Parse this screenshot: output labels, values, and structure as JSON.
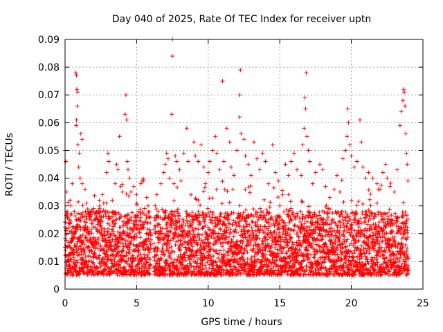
{
  "chart_data": {
    "type": "scatter",
    "title": "Day 040 of 2025, Rate Of TEC Index for receiver uptn",
    "xlabel": "GPS time / hours",
    "ylabel": "ROTI / TECUs",
    "xlim": [
      0,
      25
    ],
    "ylim": [
      0,
      0.09
    ],
    "xticks": [
      0,
      5,
      10,
      15,
      20,
      25
    ],
    "xtick_labels": [
      "0",
      "5",
      "10",
      "15",
      "20",
      "25"
    ],
    "yticks": [
      0,
      0.01,
      0.02,
      0.03,
      0.04,
      0.05,
      0.06,
      0.07,
      0.08,
      0.09
    ],
    "ytick_labels": [
      "0",
      "0.01",
      "0.02",
      "0.03",
      "0.04",
      "0.05",
      "0.06",
      "0.07",
      "0.08",
      "0.09"
    ],
    "grid": true,
    "marker": "+",
    "color": "#ff0000",
    "data_gap_hours": [
      6.0,
      6.2
    ],
    "series": [
      {
        "name": "ROTI",
        "points": [
          [
            0.0,
            0.05
          ],
          [
            0.05,
            0.046
          ],
          [
            0.1,
            0.035
          ],
          [
            0.15,
            0.028
          ],
          [
            0.3,
            0.025
          ],
          [
            0.4,
            0.03
          ],
          [
            0.5,
            0.038
          ],
          [
            0.75,
            0.078
          ],
          [
            0.8,
            0.077
          ],
          [
            0.82,
            0.072
          ],
          [
            0.88,
            0.071
          ],
          [
            0.85,
            0.066
          ],
          [
            0.8,
            0.061
          ],
          [
            0.78,
            0.059
          ],
          [
            0.9,
            0.052
          ],
          [
            1.0,
            0.049
          ],
          [
            1.1,
            0.056
          ],
          [
            1.2,
            0.054
          ],
          [
            0.95,
            0.044
          ],
          [
            1.05,
            0.04
          ],
          [
            1.2,
            0.038
          ],
          [
            1.4,
            0.036
          ],
          [
            1.5,
            0.031
          ],
          [
            1.6,
            0.028
          ],
          [
            1.8,
            0.027
          ],
          [
            2.0,
            0.029
          ],
          [
            2.2,
            0.026
          ],
          [
            2.4,
            0.032
          ],
          [
            2.5,
            0.028
          ],
          [
            2.7,
            0.031
          ],
          [
            2.9,
            0.042
          ],
          [
            3.0,
            0.049
          ],
          [
            3.05,
            0.046
          ],
          [
            3.3,
            0.032
          ],
          [
            3.5,
            0.038
          ],
          [
            3.6,
            0.045
          ],
          [
            3.7,
            0.043
          ],
          [
            3.8,
            0.055
          ],
          [
            3.9,
            0.037
          ],
          [
            4.0,
            0.035
          ],
          [
            4.2,
            0.063
          ],
          [
            4.25,
            0.07
          ],
          [
            4.3,
            0.061
          ],
          [
            4.35,
            0.046
          ],
          [
            4.4,
            0.043
          ],
          [
            4.5,
            0.04
          ],
          [
            4.6,
            0.035
          ],
          [
            4.8,
            0.037
          ],
          [
            5.0,
            0.031
          ],
          [
            5.1,
            0.028
          ],
          [
            5.3,
            0.038
          ],
          [
            5.5,
            0.039
          ],
          [
            5.7,
            0.033
          ],
          [
            5.8,
            0.03
          ],
          [
            5.95,
            0.026
          ],
          [
            6.3,
            0.03
          ],
          [
            6.5,
            0.028
          ],
          [
            6.7,
            0.038
          ],
          [
            6.9,
            0.042
          ],
          [
            7.0,
            0.045
          ],
          [
            7.1,
            0.049
          ],
          [
            7.2,
            0.047
          ],
          [
            7.3,
            0.04
          ],
          [
            7.5,
            0.09
          ],
          [
            7.5,
            0.084
          ],
          [
            7.45,
            0.063
          ],
          [
            7.6,
            0.038
          ],
          [
            7.7,
            0.048
          ],
          [
            7.8,
            0.046
          ],
          [
            8.0,
            0.043
          ],
          [
            8.1,
            0.039
          ],
          [
            8.3,
            0.049
          ],
          [
            8.5,
            0.058
          ],
          [
            8.6,
            0.046
          ],
          [
            8.8,
            0.034
          ],
          [
            9.0,
            0.053
          ],
          [
            9.1,
            0.048
          ],
          [
            9.3,
            0.046
          ],
          [
            9.5,
            0.052
          ],
          [
            9.7,
            0.044
          ],
          [
            9.8,
            0.038
          ],
          [
            10.0,
            0.042
          ],
          [
            10.1,
            0.046
          ],
          [
            10.3,
            0.05
          ],
          [
            10.5,
            0.055
          ],
          [
            10.6,
            0.049
          ],
          [
            10.8,
            0.043
          ],
          [
            11.0,
            0.075
          ],
          [
            11.1,
            0.046
          ],
          [
            11.3,
            0.058
          ],
          [
            11.5,
            0.053
          ],
          [
            11.6,
            0.044
          ],
          [
            11.8,
            0.041
          ],
          [
            12.0,
            0.05
          ],
          [
            12.2,
            0.062
          ],
          [
            12.25,
            0.079
          ],
          [
            12.2,
            0.07
          ],
          [
            12.3,
            0.056
          ],
          [
            12.5,
            0.054
          ],
          [
            12.6,
            0.048
          ],
          [
            12.8,
            0.045
          ],
          [
            13.0,
            0.041
          ],
          [
            13.2,
            0.053
          ],
          [
            13.4,
            0.047
          ],
          [
            13.6,
            0.043
          ],
          [
            13.8,
            0.049
          ],
          [
            14.0,
            0.046
          ],
          [
            14.2,
            0.038
          ],
          [
            14.5,
            0.052
          ],
          [
            14.7,
            0.042
          ],
          [
            14.9,
            0.039
          ],
          [
            15.0,
            0.03
          ],
          [
            15.2,
            0.034
          ],
          [
            15.4,
            0.045
          ],
          [
            15.6,
            0.041
          ],
          [
            15.8,
            0.046
          ],
          [
            16.0,
            0.049
          ],
          [
            16.2,
            0.043
          ],
          [
            16.5,
            0.041
          ],
          [
            16.6,
            0.052
          ],
          [
            16.7,
            0.058
          ],
          [
            16.8,
            0.065
          ],
          [
            16.85,
            0.078
          ],
          [
            16.75,
            0.069
          ],
          [
            16.9,
            0.055
          ],
          [
            17.0,
            0.05
          ],
          [
            17.1,
            0.046
          ],
          [
            17.3,
            0.038
          ],
          [
            17.5,
            0.042
          ],
          [
            17.8,
            0.045
          ],
          [
            18.0,
            0.043
          ],
          [
            18.2,
            0.037
          ],
          [
            18.5,
            0.033
          ],
          [
            18.8,
            0.036
          ],
          [
            19.0,
            0.041
          ],
          [
            19.2,
            0.035
          ],
          [
            19.4,
            0.047
          ],
          [
            19.6,
            0.05
          ],
          [
            19.7,
            0.055
          ],
          [
            19.75,
            0.065
          ],
          [
            19.8,
            0.06
          ],
          [
            19.9,
            0.052
          ],
          [
            20.0,
            0.048
          ],
          [
            20.2,
            0.044
          ],
          [
            20.4,
            0.046
          ],
          [
            20.6,
            0.061
          ],
          [
            20.7,
            0.053
          ],
          [
            20.8,
            0.044
          ],
          [
            21.0,
            0.04
          ],
          [
            21.2,
            0.042
          ],
          [
            21.5,
            0.04
          ],
          [
            21.8,
            0.038
          ],
          [
            22.0,
            0.036
          ],
          [
            22.2,
            0.042
          ],
          [
            22.4,
            0.045
          ],
          [
            22.5,
            0.04
          ],
          [
            22.7,
            0.037
          ],
          [
            23.0,
            0.035
          ],
          [
            23.2,
            0.043
          ],
          [
            23.4,
            0.059
          ],
          [
            23.5,
            0.064
          ],
          [
            23.6,
            0.068
          ],
          [
            23.65,
            0.072
          ],
          [
            23.7,
            0.071
          ],
          [
            23.75,
            0.066
          ],
          [
            23.8,
            0.056
          ],
          [
            23.85,
            0.049
          ],
          [
            23.9,
            0.045
          ],
          [
            23.95,
            0.039
          ]
        ]
      }
    ],
    "dense_band": {
      "description": "Continuous dense band of points every ~30 s",
      "baseline_range": [
        0.005,
        0.028
      ],
      "typical_center": 0.014
    }
  }
}
